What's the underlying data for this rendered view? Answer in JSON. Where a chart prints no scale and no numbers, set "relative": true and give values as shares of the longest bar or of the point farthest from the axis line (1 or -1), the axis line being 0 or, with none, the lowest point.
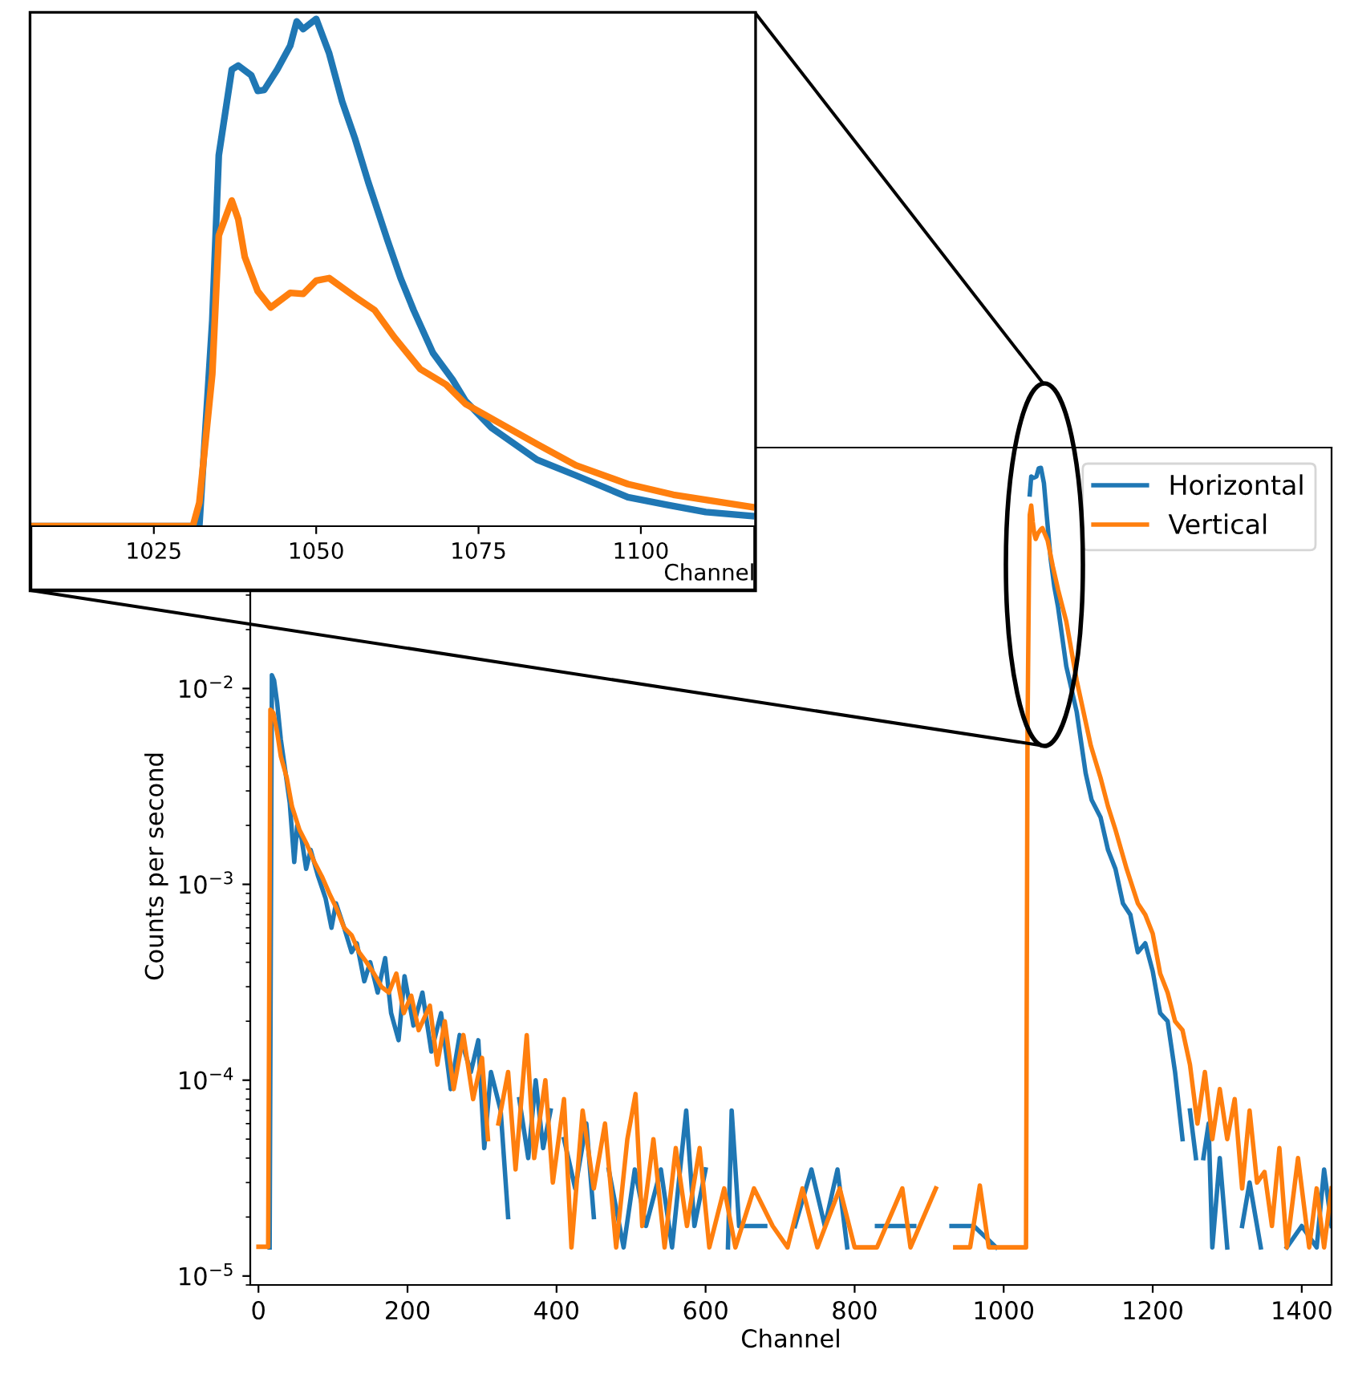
{
  "chart_data": [
    {
      "type": "line",
      "xlabel": "Channel",
      "ylabel": "Counts per second",
      "log": "y",
      "xlim": [
        -11,
        1440
      ],
      "ylim": [
        9e-06,
        0.17
      ],
      "xticks": [
        0,
        200,
        400,
        600,
        800,
        1000,
        1200,
        1400
      ],
      "yticks": [
        {
          "value": 1e-05,
          "label": "10$^{−5}$"
        },
        {
          "value": 0.0001,
          "label": "10$^{−4}$"
        },
        {
          "value": 0.001,
          "label": "10$^{−3}$"
        },
        {
          "value": 0.01,
          "label": "10$^{−2}$"
        }
      ],
      "legend": "top right",
      "series": [
        {
          "name": "Horizontal",
          "color": "#1f77b4",
          "x": [
            15,
            18,
            21,
            25,
            30,
            36,
            42,
            48,
            52,
            58,
            64,
            70,
            80,
            90,
            98,
            104,
            115,
            125,
            132,
            142,
            150,
            160,
            170,
            178,
            188,
            196,
            208,
            220,
            232,
            245,
            258,
            270,
            285,
            295,
            303,
            312,
            325,
            335,
            342,
            350,
            362,
            372,
            382,
            392,
            400,
            410,
            425,
            440,
            450,
            460,
            470,
            490,
            505,
            520,
            540,
            555,
            574,
            585,
            600,
            615,
            630,
            635,
            645,
            680,
            700,
            720,
            742,
            760,
            777,
            790,
            810,
            830,
            880,
            905,
            930,
            960,
            990,
            1010,
            1033,
            1034,
            1035,
            1037,
            1040,
            1044,
            1047,
            1050,
            1054,
            1058,
            1063,
            1068,
            1073,
            1084,
            1098,
            1110,
            1118,
            1130,
            1140,
            1150,
            1160,
            1170,
            1180,
            1190,
            1200,
            1210,
            1220,
            1230,
            1240,
            1243,
            1250,
            1258,
            1262,
            1268,
            1275,
            1280,
            1290,
            1300,
            1310,
            1320,
            1330,
            1345,
            1360,
            1380,
            1400,
            1420,
            1430,
            1440
          ],
          "values": [
            1.4e-05,
            0.0117,
            0.011,
            0.0085,
            0.0055,
            0.0038,
            0.0026,
            0.0013,
            0.002,
            0.0017,
            0.0012,
            0.0015,
            0.0011,
            0.00085,
            0.0006,
            0.0008,
            0.0006,
            0.00045,
            0.0005,
            0.00032,
            0.0004,
            0.00028,
            0.00042,
            0.00022,
            0.00016,
            0.00034,
            0.00019,
            0.00028,
            0.00014,
            0.00022,
            9e-05,
            0.00017,
            0.00011,
            0.00016,
            4.5e-05,
            0.00011,
            7e-05,
            2e-05,
            null,
            8e-05,
            4e-05,
            0.0001,
            4.5e-05,
            7e-05,
            null,
            5e-05,
            2.8e-05,
            6e-05,
            2e-05,
            null,
            3.5e-05,
            1.4e-05,
            3.5e-05,
            1.8e-05,
            3.5e-05,
            1.4e-05,
            7e-05,
            1.8e-05,
            3.5e-05,
            null,
            1.4e-05,
            7e-05,
            1.8e-05,
            1.8e-05,
            null,
            1.8e-05,
            3.5e-05,
            1.8e-05,
            3.5e-05,
            1.4e-05,
            null,
            1.8e-05,
            1.8e-05,
            null,
            1.8e-05,
            1.8e-05,
            1.4e-05,
            null,
            null,
            null,
            0.098,
            0.121,
            0.119,
            0.121,
            0.133,
            0.134,
            0.112,
            0.075,
            0.046,
            0.033,
            0.026,
            0.013,
            0.0076,
            0.0037,
            0.0027,
            0.0022,
            0.0015,
            0.0012,
            0.0008,
            0.0007,
            0.00045,
            0.0005,
            0.00036,
            0.00022,
            0.0002,
            0.00011,
            5e-05,
            null,
            7e-05,
            4e-05,
            null,
            4e-05,
            6e-05,
            1.4e-05,
            4e-05,
            1.4e-05,
            null,
            1.8e-05,
            3e-05,
            1.4e-05,
            null,
            1.4e-05,
            1.8e-05,
            1.4e-05,
            3.5e-05,
            1.8e-05
          ]
        },
        {
          "name": "Vertical",
          "color": "#ff7f0e",
          "x": [
            0,
            13,
            16,
            20,
            25,
            30,
            38,
            45,
            55,
            65,
            75,
            85,
            95,
            105,
            115,
            125,
            135,
            145,
            155,
            165,
            175,
            185,
            195,
            205,
            215,
            230,
            240,
            250,
            262,
            275,
            288,
            300,
            308,
            315,
            322,
            335,
            345,
            360,
            370,
            385,
            395,
            410,
            420,
            435,
            450,
            465,
            480,
            495,
            506,
            515,
            530,
            545,
            560,
            575,
            592,
            605,
            625,
            640,
            665,
            690,
            710,
            730,
            750,
            780,
            800,
            830,
            864,
            875,
            909,
            915,
            935,
            955,
            968,
            980,
            1020,
            1030,
            1032,
            1034,
            1035,
            1037,
            1039,
            1041,
            1043,
            1046,
            1050,
            1052,
            1059,
            1066,
            1073,
            1084,
            1098,
            1117,
            1130,
            1140,
            1150,
            1165,
            1180,
            1190,
            1200,
            1210,
            1220,
            1230,
            1240,
            1250,
            1260,
            1270,
            1280,
            1290,
            1300,
            1310,
            1320,
            1330,
            1340,
            1350,
            1360,
            1370,
            1380,
            1395,
            1410,
            1420,
            1430,
            1440
          ],
          "values": [
            1.41e-05,
            1.41e-05,
            0.0078,
            0.0075,
            0.006,
            0.0045,
            0.0035,
            0.0025,
            0.0019,
            0.0016,
            0.0013,
            0.0011,
            0.0009,
            0.00075,
            0.0006,
            0.00055,
            0.00045,
            0.0004,
            0.00035,
            0.0003,
            0.00028,
            0.00035,
            0.00022,
            0.00027,
            0.00018,
            0.00024,
            0.00012,
            0.0002,
            9e-05,
            0.00017,
            8e-05,
            0.00013,
            5e-05,
            null,
            6e-05,
            0.00011,
            3.5e-05,
            0.00017,
            4e-05,
            0.0001,
            3e-05,
            8e-05,
            1.4e-05,
            7e-05,
            2.8e-05,
            6e-05,
            1.4e-05,
            5e-05,
            8.5e-05,
            1.8e-05,
            5e-05,
            1.4e-05,
            4.5e-05,
            1.8e-05,
            4.5e-05,
            1.4e-05,
            2.8e-05,
            1.4e-05,
            2.8e-05,
            1.8e-05,
            1.4e-05,
            2.8e-05,
            1.4e-05,
            2.8e-05,
            1.4e-05,
            1.4e-05,
            2.8e-05,
            1.4e-05,
            2.8e-05,
            null,
            1.4e-05,
            1.4e-05,
            2.9e-05,
            1.4e-05,
            1.4e-05,
            1.4e-05,
            0.0062,
            0.04,
            0.077,
            0.086,
            0.071,
            0.062,
            0.058,
            0.062,
            0.065,
            0.066,
            0.057,
            0.042,
            0.032,
            0.022,
            0.011,
            0.0051,
            0.0035,
            0.0025,
            0.0019,
            0.0012,
            0.0008,
            0.0007,
            0.00056,
            0.00035,
            0.00028,
            0.0002,
            0.00018,
            0.00012,
            6e-05,
            0.00011,
            5e-05,
            9e-05,
            5e-05,
            8e-05,
            2.8e-05,
            7e-05,
            3e-05,
            3.4e-05,
            1.8e-05,
            4.5e-05,
            1.4e-05,
            4e-05,
            1.4e-05,
            2.8e-05,
            1.4e-05,
            2.8e-05
          ]
        }
      ]
    },
    {
      "type": "line",
      "relative": true,
      "xlabel": "Channel",
      "xlim": [
        1006,
        1117.6
      ],
      "xticks": [
        1025,
        1050,
        1075,
        1100
      ],
      "tick_labels": "x",
      "series": [
        {
          "color": "#1f77b4",
          "x": [
            1006,
            1032,
            1034,
            1035,
            1037,
            1038,
            1040,
            1041,
            1042,
            1044,
            1046,
            1047,
            1048,
            1050,
            1052,
            1054,
            1056,
            1058,
            1061,
            1063,
            1065,
            1068,
            1071,
            1073,
            1077,
            1084,
            1090,
            1098,
            1104,
            1110,
            1117
          ],
          "values": [
            0,
            0,
            0.405,
            0.731,
            0.9,
            0.908,
            0.889,
            0.858,
            0.86,
            0.9,
            0.947,
            0.995,
            0.98,
            1,
            0.932,
            0.837,
            0.763,
            0.679,
            0.563,
            0.489,
            0.426,
            0.341,
            0.289,
            0.247,
            0.194,
            0.131,
            0.1,
            0.057,
            0.042,
            0.028,
            0.02
          ]
        },
        {
          "color": "#ff7f0e",
          "x": [
            1006,
            1031,
            1032,
            1034,
            1035,
            1037,
            1038,
            1039,
            1041,
            1043,
            1046,
            1048,
            1050,
            1052,
            1056,
            1059,
            1062,
            1066,
            1070,
            1073,
            1078,
            1084,
            1090,
            1098,
            1105,
            1117
          ],
          "values": [
            0,
            0,
            0.046,
            0.3,
            0.573,
            0.642,
            0.605,
            0.531,
            0.463,
            0.431,
            0.46,
            0.458,
            0.484,
            0.489,
            0.452,
            0.426,
            0.373,
            0.31,
            0.279,
            0.241,
            0.205,
            0.162,
            0.12,
            0.083,
            0.062,
            0.038
          ]
        }
      ]
    }
  ]
}
